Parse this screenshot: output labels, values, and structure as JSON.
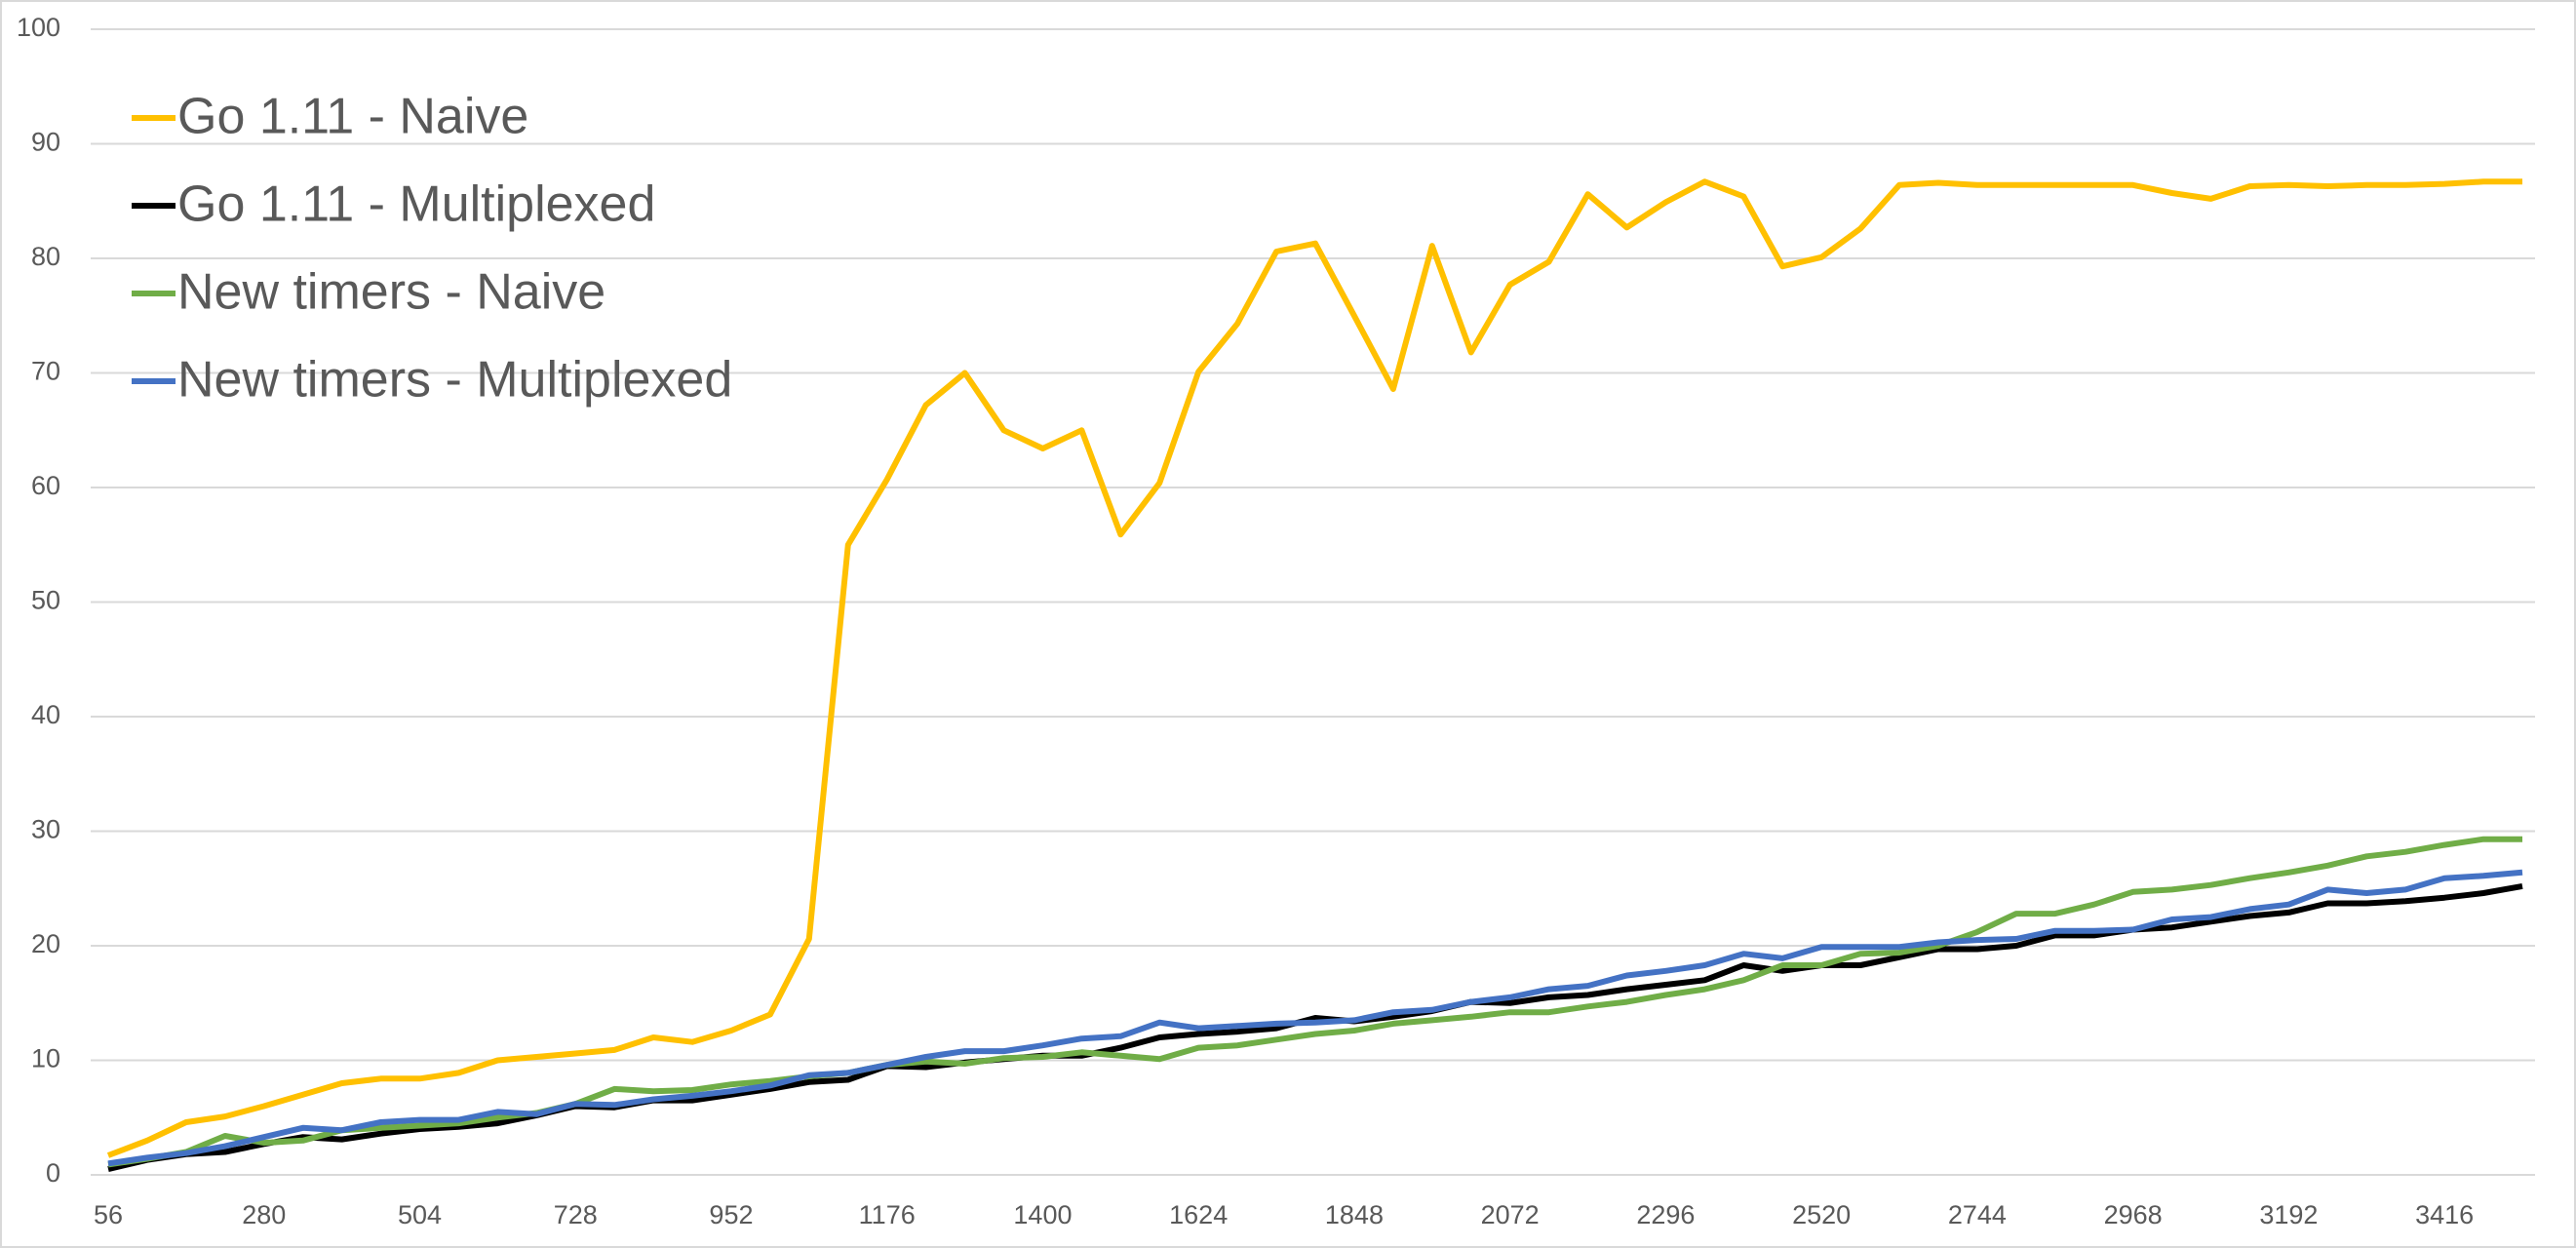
{
  "chart_data": {
    "type": "line",
    "x": [
      56,
      112,
      168,
      224,
      280,
      336,
      392,
      448,
      504,
      560,
      616,
      672,
      728,
      784,
      840,
      896,
      952,
      1008,
      1064,
      1120,
      1176,
      1232,
      1288,
      1344,
      1400,
      1456,
      1512,
      1568,
      1624,
      1680,
      1736,
      1792,
      1848,
      1904,
      1960,
      2016,
      2072,
      2128,
      2184,
      2240,
      2296,
      2352,
      2408,
      2464,
      2520,
      2576,
      2632,
      2688,
      2744,
      2800,
      2856,
      2912,
      2968,
      3024,
      3080,
      3136,
      3192,
      3248,
      3304,
      3360,
      3416,
      3472,
      3528
    ],
    "series": [
      {
        "name": "Go 1.11 - Naive",
        "color": "#ffc000",
        "values": [
          1.7,
          3,
          4.6,
          5.1,
          6,
          7,
          8,
          8.4,
          8.4,
          8.9,
          10,
          10.3,
          10.6,
          10.9,
          12,
          11.6,
          12.6,
          14,
          20.6,
          55,
          60.7,
          67.2,
          70,
          65,
          63.4,
          65,
          55.9,
          60.4,
          70.1,
          74.3,
          80.6,
          81.3,
          75,
          68.6,
          81.1,
          71.8,
          77.7,
          79.7,
          85.6,
          82.7,
          84.9,
          86.7,
          85.4,
          79.3,
          80.1,
          82.6,
          86.4,
          86.6,
          86.4,
          86.4,
          86.4,
          86.4,
          86.4,
          85.7,
          85.2,
          86.3,
          86.4,
          86.3,
          86.4,
          86.4,
          86.5,
          86.7,
          86.7
        ]
      },
      {
        "name": "Go 1.11 - Multiplexed",
        "color": "#000000",
        "values": [
          0.5,
          1.3,
          1.8,
          2,
          2.7,
          3.3,
          3.1,
          3.6,
          4,
          4.2,
          4.5,
          5.2,
          6,
          5.9,
          6.5,
          6.5,
          7,
          7.5,
          8.1,
          8.3,
          9.5,
          9.4,
          9.8,
          10.1,
          10.4,
          10.4,
          11.1,
          12,
          12.3,
          12.5,
          12.8,
          13.7,
          13.4,
          13.8,
          14.3,
          15.1,
          15,
          15.5,
          15.7,
          16.2,
          16.6,
          17,
          18.3,
          17.8,
          18.3,
          18.3,
          19,
          19.7,
          19.7,
          20,
          20.9,
          20.9,
          21.4,
          21.6,
          22.1,
          22.6,
          22.9,
          23.7,
          23.7,
          23.9,
          24.2,
          24.6,
          25.2
        ]
      },
      {
        "name": "New timers - Naive",
        "color": "#70ad47",
        "values": [
          0.9,
          1.4,
          2,
          3.4,
          2.8,
          3,
          3.9,
          4.1,
          4.3,
          4.5,
          5,
          5.4,
          6.2,
          7.5,
          7.3,
          7.4,
          7.9,
          8.2,
          8.6,
          8.9,
          9.6,
          9.9,
          9.7,
          10.2,
          10.3,
          10.7,
          10.4,
          10.1,
          11.1,
          11.3,
          11.8,
          12.3,
          12.6,
          13.2,
          13.5,
          13.8,
          14.2,
          14.2,
          14.7,
          15.1,
          15.7,
          16.2,
          17,
          18.3,
          18.3,
          19.3,
          19.4,
          20,
          21.2,
          22.8,
          22.8,
          23.6,
          24.7,
          24.9,
          25.3,
          25.9,
          26.4,
          27,
          27.8,
          28.2,
          28.8,
          29.3,
          29.3
        ]
      },
      {
        "name": "New timers - Multiplexed",
        "color": "#4472c4",
        "values": [
          1,
          1.5,
          1.9,
          2.5,
          3.3,
          4.1,
          3.9,
          4.6,
          4.8,
          4.8,
          5.5,
          5.3,
          6.2,
          6.1,
          6.6,
          6.9,
          7.3,
          7.8,
          8.7,
          8.9,
          9.6,
          10.3,
          10.8,
          10.8,
          11.3,
          11.9,
          12.1,
          13.3,
          12.8,
          13,
          13.2,
          13.3,
          13.5,
          14.2,
          14.4,
          15.1,
          15.5,
          16.2,
          16.5,
          17.4,
          17.8,
          18.3,
          19.3,
          18.9,
          19.9,
          19.9,
          19.9,
          20.3,
          20.5,
          20.6,
          21.3,
          21.3,
          21.4,
          22.3,
          22.5,
          23.2,
          23.6,
          24.9,
          24.6,
          24.9,
          25.9,
          26.1,
          26.4
        ]
      }
    ],
    "xlim": [
      56,
      3528
    ],
    "xticks": [
      56,
      280,
      504,
      728,
      952,
      1176,
      1400,
      1624,
      1848,
      2072,
      2296,
      2520,
      2744,
      2968,
      3192,
      3416
    ],
    "ylim": [
      0,
      100
    ],
    "yticks": [
      0,
      10,
      20,
      30,
      40,
      50,
      60,
      70,
      80,
      90,
      100
    ],
    "grid": true,
    "legend": "upper left"
  }
}
